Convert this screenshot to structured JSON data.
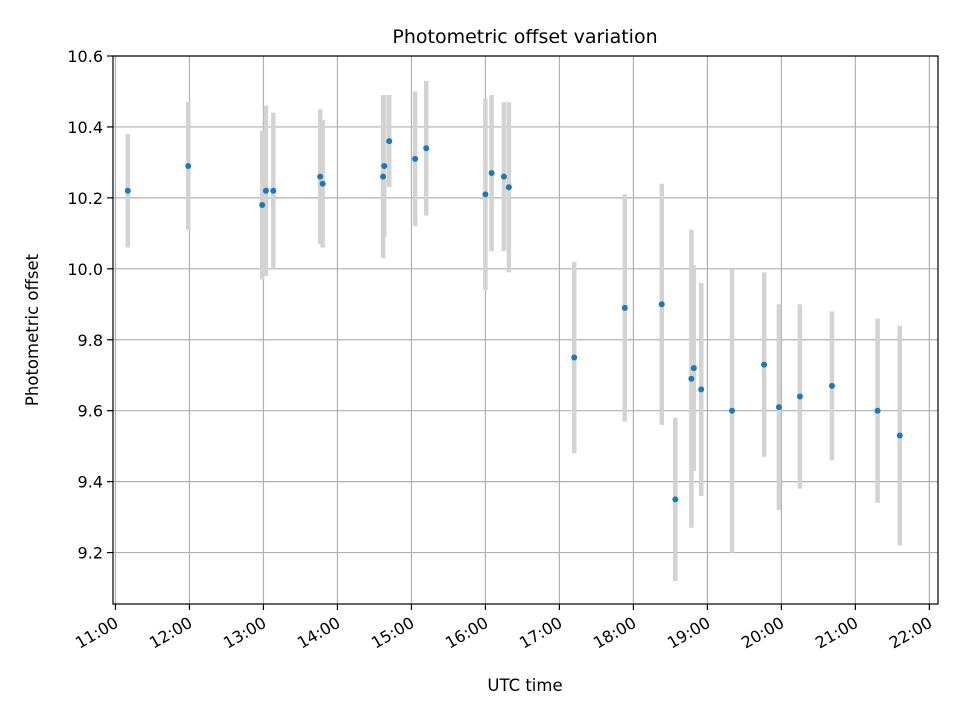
{
  "chart_data": {
    "type": "scatter",
    "title": "Photometric offset variation",
    "xlabel": "UTC time",
    "ylabel": "Photometric offset",
    "ylim": [
      9.055,
      10.6
    ],
    "xlim": [
      "10:58",
      "22:07"
    ],
    "x_ticks": [
      "11:00",
      "12:00",
      "13:00",
      "14:00",
      "15:00",
      "16:00",
      "17:00",
      "18:00",
      "19:00",
      "20:00",
      "21:00",
      "22:00"
    ],
    "y_ticks": [
      "9.2",
      "9.4",
      "9.6",
      "9.8",
      "10.0",
      "10.2",
      "10.4",
      "10.6"
    ],
    "grid": true,
    "colors": {
      "points": "#1f77b4",
      "errorbars": "#d3d3d3",
      "grid": "#b0b0b0"
    },
    "series": [
      {
        "points": [
          {
            "x": "11:10",
            "y": 10.22,
            "err": 0.16
          },
          {
            "x": "11:59",
            "y": 10.29,
            "err": 0.18
          },
          {
            "x": "12:59",
            "y": 10.18,
            "err": 0.21
          },
          {
            "x": "13:02",
            "y": 10.22,
            "err": 0.24
          },
          {
            "x": "13:08",
            "y": 10.22,
            "err": 0.22
          },
          {
            "x": "13:46",
            "y": 10.26,
            "err": 0.19
          },
          {
            "x": "13:48",
            "y": 10.24,
            "err": 0.18
          },
          {
            "x": "14:37",
            "y": 10.26,
            "err": 0.23
          },
          {
            "x": "14:38",
            "y": 10.29,
            "err": 0.2
          },
          {
            "x": "14:42",
            "y": 10.36,
            "err": 0.13
          },
          {
            "x": "15:03",
            "y": 10.31,
            "err": 0.19
          },
          {
            "x": "15:12",
            "y": 10.34,
            "err": 0.19
          },
          {
            "x": "16:00",
            "y": 10.21,
            "err": 0.27
          },
          {
            "x": "16:05",
            "y": 10.27,
            "err": 0.22
          },
          {
            "x": "16:15",
            "y": 10.26,
            "err": 0.21
          },
          {
            "x": "16:19",
            "y": 10.23,
            "err": 0.24
          },
          {
            "x": "17:12",
            "y": 9.75,
            "err": 0.27
          },
          {
            "x": "17:53",
            "y": 9.89,
            "err": 0.32
          },
          {
            "x": "18:23",
            "y": 9.9,
            "err": 0.34
          },
          {
            "x": "18:34",
            "y": 9.35,
            "err": 0.23
          },
          {
            "x": "18:47",
            "y": 9.69,
            "err": 0.42
          },
          {
            "x": "18:49",
            "y": 9.72,
            "err": 0.29
          },
          {
            "x": "18:55",
            "y": 9.66,
            "err": 0.3
          },
          {
            "x": "19:20",
            "y": 9.6,
            "err": 0.4
          },
          {
            "x": "19:46",
            "y": 9.73,
            "err": 0.26
          },
          {
            "x": "19:58",
            "y": 9.61,
            "err": 0.29
          },
          {
            "x": "20:15",
            "y": 9.64,
            "err": 0.26
          },
          {
            "x": "20:41",
            "y": 9.67,
            "err": 0.21
          },
          {
            "x": "21:18",
            "y": 9.6,
            "err": 0.26
          },
          {
            "x": "21:36",
            "y": 9.53,
            "err": 0.31
          }
        ]
      }
    ]
  }
}
